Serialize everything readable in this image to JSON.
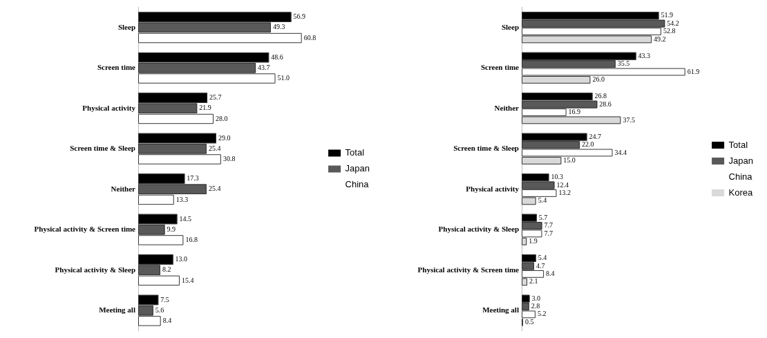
{
  "chart_data": [
    {
      "type": "bar",
      "orientation": "horizontal",
      "legend": "right",
      "categories": [
        "Sleep",
        "Screen time",
        "Physical activity",
        "Screen time & Sleep",
        "Neither",
        "Physical activity & Screen time",
        "Physical activity & Sleep",
        "Meeting all"
      ],
      "series": [
        {
          "name": "Total",
          "color": "#000000",
          "values": [
            56.9,
            48.6,
            25.7,
            29.0,
            17.3,
            14.5,
            13.0,
            7.5
          ],
          "value_labels": [
            "56.9",
            "48.6",
            "25.7",
            "29.0",
            "17.3",
            "14.5",
            "13.0",
            "7.5"
          ]
        },
        {
          "name": "Japan",
          "color": "#595959",
          "values": [
            49.3,
            43.7,
            21.9,
            25.4,
            25.4,
            9.9,
            8.2,
            5.6
          ],
          "value_labels": [
            "49.3",
            "43.7",
            "21.9",
            "25.4",
            "25.4",
            "9.9",
            "8.2",
            "5.6"
          ]
        },
        {
          "name": "China",
          "color": "#ffffff",
          "values": [
            60.8,
            51.0,
            28.0,
            30.8,
            13.3,
            16.8,
            15.4,
            8.4
          ],
          "value_labels": [
            "60.8",
            "51.0",
            "28.0",
            "30.8",
            "13.3",
            "16.8",
            "15.4",
            "8.4"
          ]
        }
      ]
    },
    {
      "type": "bar",
      "orientation": "horizontal",
      "legend": "right",
      "categories": [
        "Sleep",
        "Screen time",
        "Neither",
        "Screen time & Sleep",
        "Physical activity",
        "Physical activity & Sleep",
        "Physical activity & Screen time",
        "Meeting all"
      ],
      "series": [
        {
          "name": "Total",
          "color": "#000000",
          "values": [
            51.9,
            43.3,
            26.8,
            24.7,
            10.3,
            5.7,
            5.4,
            3.0
          ],
          "value_labels": [
            "51.9",
            "43.3",
            "26.8",
            "24.7",
            "10.3",
            "5.7",
            "5.4",
            "3.0"
          ]
        },
        {
          "name": "Japan",
          "color": "#595959",
          "values": [
            54.2,
            35.5,
            28.6,
            22.0,
            12.4,
            7.7,
            4.7,
            2.8
          ],
          "value_labels": [
            "54.2",
            "35.5",
            "28.6",
            "22.0",
            "12.4",
            "7.7",
            "4.7",
            "2.8"
          ]
        },
        {
          "name": "China",
          "color": "#ffffff",
          "values": [
            52.8,
            61.9,
            16.9,
            34.4,
            13.2,
            7.7,
            8.4,
            5.2
          ],
          "value_labels": [
            "52.8",
            "61.9",
            "16.9",
            "34.4",
            "13.2",
            "7.7",
            "8.4",
            "5.2"
          ]
        },
        {
          "name": "Korea",
          "color": "#d9d9d9",
          "values": [
            49.2,
            26.0,
            37.5,
            15.0,
            5.4,
            1.9,
            2.1,
            0.5
          ],
          "value_labels": [
            "49.2",
            "26.0",
            "37.5",
            "15.0",
            "5.4",
            "1.9",
            "2.1",
            "0.5"
          ]
        }
      ]
    }
  ]
}
